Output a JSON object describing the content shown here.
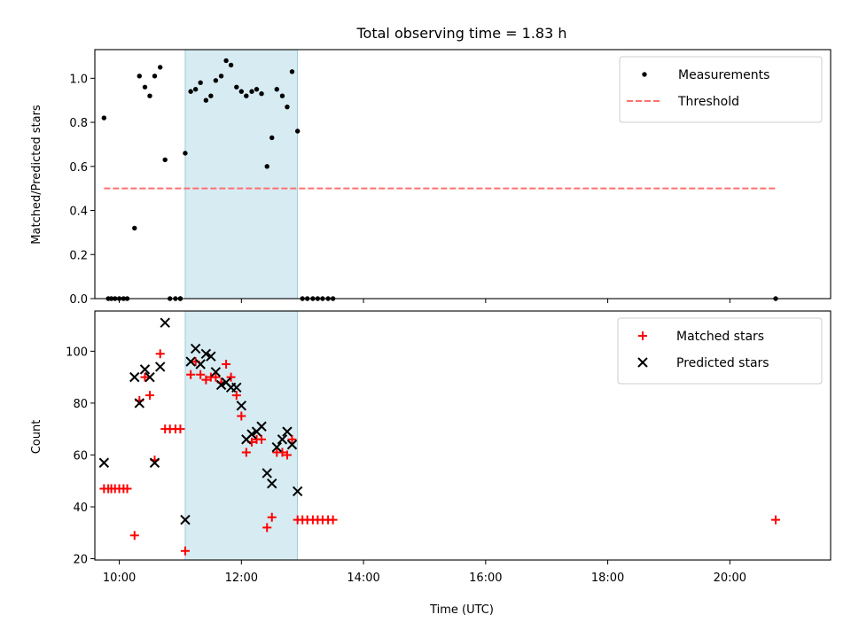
{
  "chart_data": [
    {
      "type": "scatter",
      "title": "Total observing time = 1.83 h",
      "ylabel": "Matched/Predicted stars",
      "xlim": [
        9.6,
        21.65
      ],
      "ylim": [
        0,
        1.13
      ],
      "yticks": [
        0.0,
        0.2,
        0.4,
        0.6,
        0.8,
        1.0
      ],
      "ytick_labels": [
        "0.0",
        "0.2",
        "0.4",
        "0.6",
        "0.8",
        "1.0"
      ],
      "grid": false,
      "legend_position": "top-right",
      "shaded_span": {
        "x_start": 11.08,
        "x_end": 12.92,
        "color": "#add8e6"
      },
      "threshold": {
        "name": "Threshold",
        "y": 0.5,
        "x_range": [
          9.75,
          20.75
        ],
        "color": "#ff7070",
        "style": "dashed"
      },
      "series": [
        {
          "name": "Measurements",
          "marker": "dot",
          "color": "#000000",
          "x": [
            9.75,
            9.82,
            9.87,
            9.93,
            10.0,
            10.07,
            10.13,
            10.25,
            10.33,
            10.42,
            10.5,
            10.58,
            10.67,
            10.75,
            10.83,
            10.92,
            11.0,
            11.0,
            11.08,
            11.17,
            11.25,
            11.33,
            11.42,
            11.5,
            11.58,
            11.67,
            11.75,
            11.83,
            11.92,
            12.0,
            12.08,
            12.17,
            12.25,
            12.33,
            12.42,
            12.5,
            12.58,
            12.67,
            12.75,
            12.83,
            12.92,
            13.0,
            13.08,
            13.17,
            13.25,
            13.33,
            13.42,
            13.5,
            20.75
          ],
          "y": [
            0.82,
            0.0,
            0.0,
            0.0,
            0.0,
            0.0,
            0.0,
            0.32,
            1.01,
            0.96,
            0.92,
            1.01,
            1.05,
            0.63,
            0.0,
            0.0,
            0.0,
            0.0,
            0.66,
            0.94,
            0.95,
            0.98,
            0.9,
            0.92,
            0.99,
            1.01,
            1.08,
            1.06,
            0.96,
            0.94,
            0.92,
            0.94,
            0.95,
            0.93,
            0.6,
            0.73,
            0.95,
            0.92,
            0.87,
            1.03,
            0.76,
            0.0,
            0.0,
            0.0,
            0.0,
            0.0,
            0.0,
            0.0,
            0.0
          ]
        }
      ]
    },
    {
      "type": "scatter",
      "xlabel": "Time (UTC)",
      "ylabel": "Count",
      "xlim": [
        9.6,
        21.65
      ],
      "ylim": [
        19.5,
        115.5
      ],
      "xticks": [
        10,
        12,
        14,
        16,
        18,
        20
      ],
      "xtick_labels": [
        "10:00",
        "12:00",
        "14:00",
        "16:00",
        "18:00",
        "20:00"
      ],
      "yticks": [
        20,
        40,
        60,
        80,
        100
      ],
      "ytick_labels": [
        "20",
        "40",
        "60",
        "80",
        "100"
      ],
      "grid": false,
      "legend_position": "top-right",
      "shaded_span": {
        "x_start": 11.08,
        "x_end": 12.92,
        "color": "#add8e6"
      },
      "series": [
        {
          "name": "Matched stars",
          "marker": "plus",
          "color": "#ff0000",
          "x": [
            9.75,
            9.82,
            9.87,
            9.93,
            10.0,
            10.07,
            10.13,
            10.25,
            10.33,
            10.42,
            10.5,
            10.58,
            10.67,
            10.75,
            10.83,
            10.92,
            11.0,
            11.08,
            11.17,
            11.25,
            11.33,
            11.42,
            11.5,
            11.58,
            11.67,
            11.75,
            11.83,
            11.92,
            12.0,
            12.08,
            12.17,
            12.25,
            12.33,
            12.42,
            12.5,
            12.58,
            12.67,
            12.75,
            12.83,
            12.92,
            13.0,
            13.08,
            13.17,
            13.25,
            13.33,
            13.42,
            13.5,
            20.75
          ],
          "y": [
            47,
            47,
            47,
            47,
            47,
            47,
            47,
            29,
            81,
            90,
            83,
            58,
            99,
            70,
            70,
            70,
            70,
            23,
            91,
            96,
            91,
            89,
            90,
            90,
            88,
            95,
            90,
            83,
            75,
            61,
            65,
            66,
            66,
            32,
            36,
            61,
            61,
            60,
            66,
            35,
            35,
            35,
            35,
            35,
            35,
            35,
            35,
            35
          ]
        },
        {
          "name": "Predicted stars",
          "marker": "x",
          "color": "#000000",
          "x": [
            9.75,
            10.25,
            10.33,
            10.42,
            10.5,
            10.58,
            10.67,
            10.75,
            11.08,
            11.17,
            11.25,
            11.33,
            11.42,
            11.5,
            11.58,
            11.67,
            11.75,
            11.83,
            11.92,
            12.0,
            12.08,
            12.17,
            12.25,
            12.33,
            12.42,
            12.5,
            12.58,
            12.67,
            12.75,
            12.83,
            12.92
          ],
          "y": [
            57,
            90,
            80,
            93,
            90,
            57,
            94,
            111,
            35,
            96,
            101,
            95,
            99,
            98,
            92,
            87,
            88,
            86,
            86,
            79,
            66,
            68,
            69,
            71,
            53,
            49,
            63,
            66,
            69,
            64,
            46
          ]
        }
      ]
    }
  ]
}
